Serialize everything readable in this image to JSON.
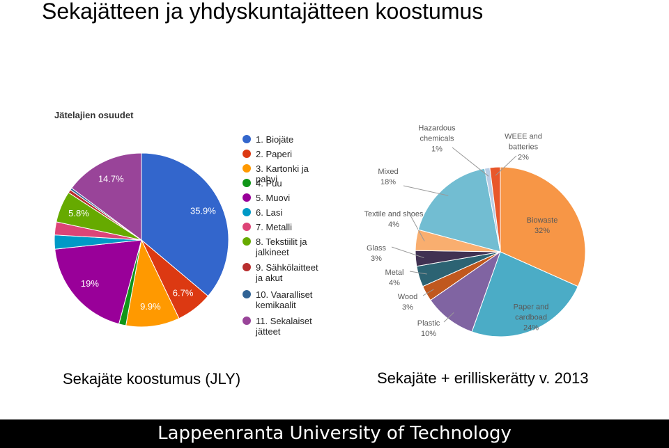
{
  "title": "Sekajätteen ja yhdyskuntajätteen koostumus",
  "footer": "Lappeenranta University of Technology",
  "chart_data": [
    {
      "type": "pie",
      "title": "Jätelajien osuudet",
      "caption": "Sekajäte koostumus (JLY)",
      "categories": [
        "1. Biojäte",
        "2. Paperi",
        "3. Kartonki ja pahvi",
        "4. Puu",
        "5. Muovi",
        "6. Lasi",
        "7. Metalli",
        "8. Tekstiilit ja jalkineet",
        "9. Sähkölaitteet ja akut",
        "10. Vaaralliset kemikaalit",
        "11. Sekalaiset jätteet"
      ],
      "values": [
        35.9,
        6.7,
        9.9,
        1.3,
        19,
        2.6,
        2.4,
        5.8,
        0.6,
        0.4,
        14.7
      ],
      "value_labels": [
        "35.9%",
        "6.7%",
        "9.9%",
        null,
        "19%",
        null,
        null,
        "5.8%",
        null,
        null,
        "14.7%"
      ],
      "colors": [
        "#3366cc",
        "#dc3912",
        "#ff9900",
        "#109618",
        "#990099",
        "#0099c6",
        "#dd4477",
        "#66aa00",
        "#b82e2e",
        "#316395",
        "#994499"
      ]
    },
    {
      "type": "pie",
      "caption": "Sekajäte + erilliskerätty v. 2013",
      "categories": [
        "Biowaste",
        "Paper and cardboad",
        "Plastic",
        "Wood",
        "Metal",
        "Glass",
        "Textile and shoes",
        "Mixed",
        "Hazardous chemicals",
        "WEEE and batteries"
      ],
      "values": [
        32,
        24,
        10,
        3,
        4,
        3,
        4,
        18,
        1,
        2
      ],
      "value_labels": [
        "32%",
        "24%",
        "10%",
        "3%",
        "4%",
        "3%",
        "4%",
        "18%",
        "1%",
        "2%"
      ],
      "colors": [
        "#f79646",
        "#4bacc6",
        "#8064a2",
        "#c0581e",
        "#2c6373",
        "#403152",
        "#f9ae6f",
        "#72bdd2",
        "#b9cde5",
        "#e8572b"
      ]
    }
  ]
}
